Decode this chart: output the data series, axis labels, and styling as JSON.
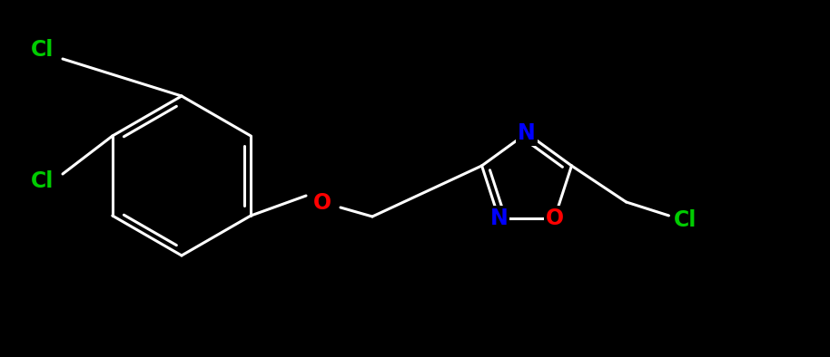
{
  "background_color": "#000000",
  "bond_color": "#ffffff",
  "atom_colors": {
    "Cl": "#00cc00",
    "O": "#ff0000",
    "N": "#0000ff",
    "C": "#ffffff"
  },
  "bond_width": 2.2,
  "font_size": 17,
  "figsize": [
    9.14,
    3.94
  ],
  "dpi": 100,
  "xlim": [
    0,
    914
  ],
  "ylim": [
    0,
    394
  ]
}
